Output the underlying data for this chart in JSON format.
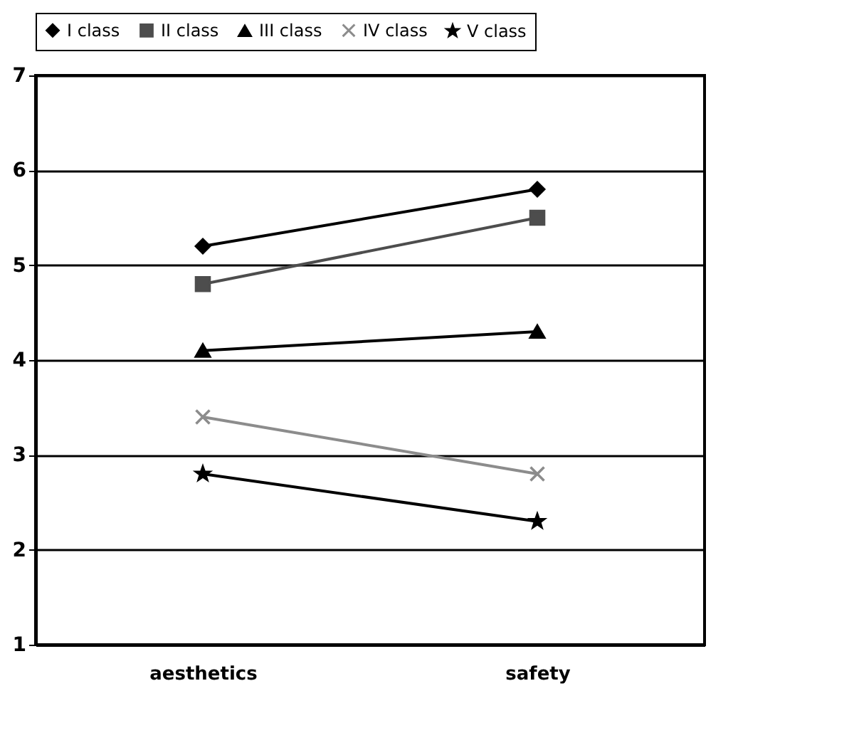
{
  "chart_data": {
    "type": "line",
    "categories": [
      "aesthetics",
      "safety"
    ],
    "series": [
      {
        "name": "I class",
        "color": "#000000",
        "marker": "diamond",
        "values": [
          5.2,
          5.8
        ]
      },
      {
        "name": "II class",
        "color": "#4d4d4d",
        "marker": "square",
        "values": [
          4.8,
          5.5
        ]
      },
      {
        "name": "III class",
        "color": "#000000",
        "marker": "triangle",
        "values": [
          4.1,
          4.3
        ]
      },
      {
        "name": "IV class",
        "color": "#8c8c8c",
        "marker": "cross",
        "values": [
          3.4,
          2.8
        ]
      },
      {
        "name": "V class",
        "color": "#000000",
        "marker": "star",
        "values": [
          2.8,
          2.3
        ]
      }
    ],
    "ylim": [
      1,
      7
    ],
    "yticks": [
      1,
      2,
      3,
      4,
      5,
      6,
      7
    ],
    "grid": "y",
    "legend": "top"
  }
}
